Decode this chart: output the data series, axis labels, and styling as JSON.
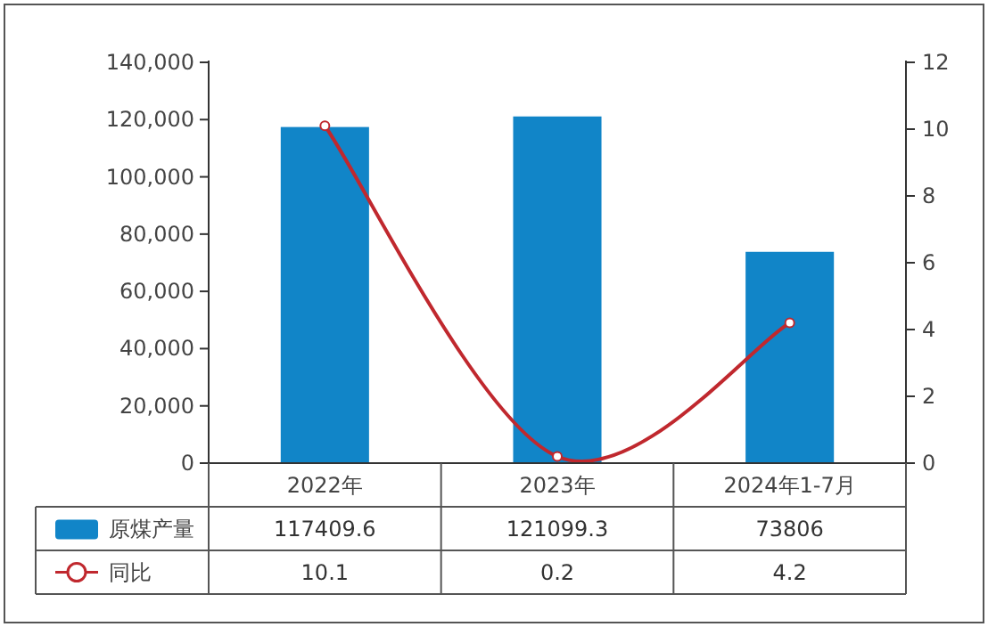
{
  "chart_data": {
    "type": "bar",
    "categories": [
      "2022年",
      "2023年",
      "2024年1-7月"
    ],
    "series": [
      {
        "name": "原煤产量",
        "color": "#1185c8",
        "values": [
          117409.6,
          121099.3,
          73806
        ]
      },
      {
        "name": "同比",
        "type": "line",
        "axis": "y2",
        "color": "#c0282e",
        "marker": "circle",
        "values": [
          10.1,
          0.2,
          4.2
        ]
      }
    ],
    "ylim": [
      0,
      140000
    ],
    "yticks": [
      {
        "value": 0,
        "label": "0"
      },
      {
        "value": 20000,
        "label": "20,000"
      },
      {
        "value": 40000,
        "label": "40,000"
      },
      {
        "value": 60000,
        "label": "60,000"
      },
      {
        "value": 80000,
        "label": "80,000"
      },
      {
        "value": 100000,
        "label": "100,000"
      },
      {
        "value": 120000,
        "label": "120,000"
      },
      {
        "value": 140000,
        "label": "140,000"
      }
    ],
    "y2lim": [
      0,
      12
    ],
    "y2ticks": [
      0,
      2,
      4,
      6,
      8,
      10,
      12
    ],
    "data_labels": true,
    "legend": "bottom left",
    "grid": false
  }
}
